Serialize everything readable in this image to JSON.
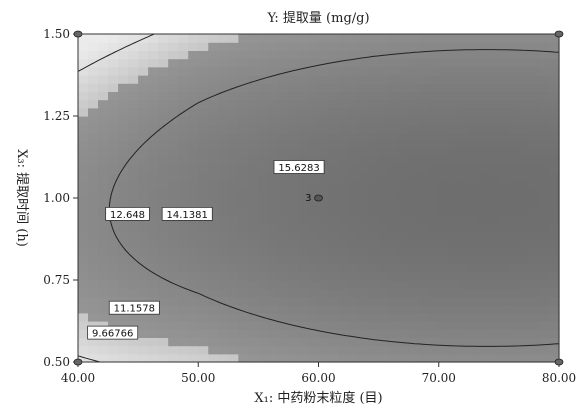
{
  "chart_data": {
    "type": "heatmap",
    "title": "Y: 提取量 (mg/g)",
    "xlabel": "X₁: 中药粉末粒度 (目)",
    "ylabel": "X₃: 提取时间 (h)",
    "xlim": [
      40,
      80
    ],
    "ylim": [
      0.5,
      1.5
    ],
    "x_ticks": [
      "40.00",
      "50.00",
      "60.00",
      "70.00",
      "80.00"
    ],
    "y_ticks": [
      "0.50",
      "0.75",
      "1.00",
      "1.25",
      "1.50"
    ],
    "grid": false,
    "colormap": "grayscale, darker = higher response",
    "surface": {
      "form": "quadratic",
      "center_x": 74,
      "center_y": 1.0,
      "max_value": 17.0,
      "a": 0.0014,
      "b": 6.7,
      "c": -3.2
    },
    "contours": [
      {
        "level": 9.66766,
        "label": "9.66766",
        "label_x": 40.8,
        "label_y": 0.588
      },
      {
        "level": 11.1578,
        "label": "11.1578",
        "label_x": 42.6,
        "label_y": 0.664
      },
      {
        "level": 12.648,
        "label": "12.648",
        "label_x": 42.3,
        "label_y": 0.95
      },
      {
        "level": 14.1381,
        "label": "14.1381",
        "label_x": 47.0,
        "label_y": 0.95
      },
      {
        "level": 15.6283,
        "label": "15.6283",
        "label_x": 56.3,
        "label_y": 1.093
      }
    ],
    "design_point": {
      "x": 60,
      "y": 1.0,
      "label": "3"
    },
    "corner_points": [
      {
        "x": 40,
        "y": 1.5
      },
      {
        "x": 80,
        "y": 1.5
      },
      {
        "x": 40,
        "y": 0.5
      },
      {
        "x": 80,
        "y": 0.5
      }
    ]
  }
}
